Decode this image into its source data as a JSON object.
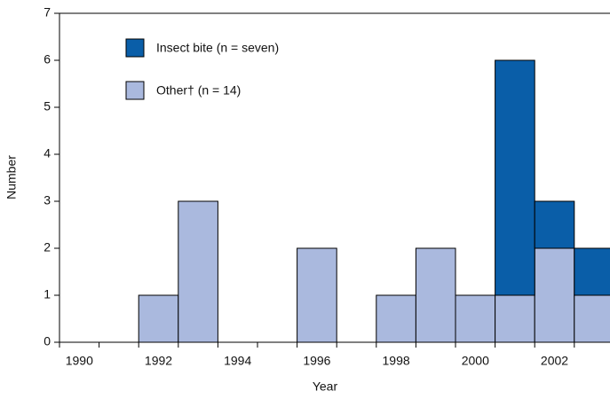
{
  "chart_data": {
    "type": "bar",
    "stacked": true,
    "x_label": "Year",
    "y_label": "Number",
    "categories": [
      "1990",
      null,
      "1992",
      null,
      "1994",
      null,
      "1996",
      null,
      "1998",
      null,
      "2000",
      null,
      "2002",
      null
    ],
    "series": [
      {
        "name": "Other† (n = 14)",
        "color": "#aab9de",
        "values": [
          0,
          0,
          1,
          3,
          0,
          0,
          2,
          0,
          1,
          2,
          1,
          1,
          2,
          1
        ]
      },
      {
        "name": "Insect bite (n = seven)",
        "color": "#0a5ea8",
        "values": [
          0,
          0,
          0,
          0,
          0,
          0,
          0,
          0,
          0,
          0,
          0,
          5,
          1,
          1
        ]
      }
    ],
    "ylim": [
      0,
      7
    ],
    "yticks": [
      0,
      1,
      2,
      3,
      4,
      5,
      6,
      7
    ]
  }
}
